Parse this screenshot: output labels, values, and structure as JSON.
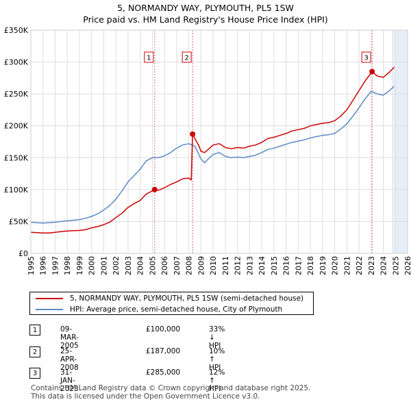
{
  "chart_data": {
    "type": "line",
    "title": "5, NORMANDY WAY, PLYMOUTH, PL5 1SW",
    "subtitle": "Price paid vs. HM Land Registry's House Price Index (HPI)",
    "xlim": [
      1995,
      2026
    ],
    "ylim": [
      0,
      350000
    ],
    "x_ticks": [
      "1995",
      "1996",
      "1997",
      "1998",
      "1999",
      "2000",
      "2001",
      "2002",
      "2003",
      "2004",
      "2005",
      "2006",
      "2007",
      "2008",
      "2009",
      "2010",
      "2011",
      "2012",
      "2013",
      "2014",
      "2015",
      "2016",
      "2017",
      "2018",
      "2019",
      "2020",
      "2021",
      "2022",
      "2023",
      "2024",
      "2025",
      "2026"
    ],
    "y_ticks": [
      {
        "value": 0,
        "label": "£0"
      },
      {
        "value": 50000,
        "label": "£50K"
      },
      {
        "value": 100000,
        "label": "£100K"
      },
      {
        "value": 150000,
        "label": "£150K"
      },
      {
        "value": 200000,
        "label": "£200K"
      },
      {
        "value": 250000,
        "label": "£250K"
      },
      {
        "value": 300000,
        "label": "£300K"
      },
      {
        "value": 350000,
        "label": "£350K"
      }
    ],
    "grid": true,
    "forecast_start": 2024.7,
    "series": [
      {
        "name": "5, NORMANDY WAY, PLYMOUTH, PL5 1SW (semi-detached house)",
        "color": "#cc0000",
        "points": [
          [
            1995.0,
            33000
          ],
          [
            1995.5,
            32500
          ],
          [
            1996.0,
            32000
          ],
          [
            1996.5,
            32000
          ],
          [
            1997.0,
            33000
          ],
          [
            1997.5,
            34000
          ],
          [
            1998.0,
            35000
          ],
          [
            1998.5,
            35500
          ],
          [
            1999.0,
            36000
          ],
          [
            1999.5,
            37000
          ],
          [
            2000.0,
            40000
          ],
          [
            2000.5,
            42000
          ],
          [
            2001.0,
            45000
          ],
          [
            2001.5,
            49000
          ],
          [
            2002.0,
            56000
          ],
          [
            2002.5,
            63000
          ],
          [
            2003.0,
            72000
          ],
          [
            2003.5,
            78000
          ],
          [
            2004.0,
            83000
          ],
          [
            2004.5,
            93000
          ],
          [
            2005.0,
            98000
          ],
          [
            2005.19,
            100000
          ],
          [
            2005.5,
            99000
          ],
          [
            2006.0,
            103000
          ],
          [
            2006.5,
            108000
          ],
          [
            2007.0,
            112000
          ],
          [
            2007.5,
            117000
          ],
          [
            2008.0,
            118000
          ],
          [
            2008.2,
            115000
          ],
          [
            2008.31,
            187000
          ],
          [
            2008.5,
            180000
          ],
          [
            2008.8,
            170000
          ],
          [
            2009.0,
            160000
          ],
          [
            2009.3,
            158000
          ],
          [
            2009.6,
            163000
          ],
          [
            2010.0,
            170000
          ],
          [
            2010.5,
            172000
          ],
          [
            2011.0,
            166000
          ],
          [
            2011.5,
            164000
          ],
          [
            2012.0,
            166000
          ],
          [
            2012.5,
            165000
          ],
          [
            2013.0,
            168000
          ],
          [
            2013.5,
            170000
          ],
          [
            2014.0,
            174000
          ],
          [
            2014.5,
            180000
          ],
          [
            2015.0,
            182000
          ],
          [
            2015.5,
            185000
          ],
          [
            2016.0,
            188000
          ],
          [
            2016.5,
            192000
          ],
          [
            2017.0,
            194000
          ],
          [
            2017.5,
            196000
          ],
          [
            2018.0,
            200000
          ],
          [
            2018.5,
            202000
          ],
          [
            2019.0,
            204000
          ],
          [
            2019.5,
            205000
          ],
          [
            2020.0,
            208000
          ],
          [
            2020.5,
            215000
          ],
          [
            2021.0,
            225000
          ],
          [
            2021.5,
            240000
          ],
          [
            2022.0,
            255000
          ],
          [
            2022.5,
            270000
          ],
          [
            2023.08,
            285000
          ],
          [
            2023.5,
            278000
          ],
          [
            2024.0,
            276000
          ],
          [
            2024.5,
            284000
          ],
          [
            2024.9,
            292000
          ]
        ]
      },
      {
        "name": "HPI: Average price, semi-detached house, City of Plymouth",
        "color": "#5a8ac6",
        "points": [
          [
            1995.0,
            49000
          ],
          [
            1995.5,
            48000
          ],
          [
            1996.0,
            47500
          ],
          [
            1996.5,
            48000
          ],
          [
            1997.0,
            49000
          ],
          [
            1997.5,
            50000
          ],
          [
            1998.0,
            51000
          ],
          [
            1998.5,
            52000
          ],
          [
            1999.0,
            53000
          ],
          [
            1999.5,
            55000
          ],
          [
            2000.0,
            58000
          ],
          [
            2000.5,
            62000
          ],
          [
            2001.0,
            68000
          ],
          [
            2001.5,
            75000
          ],
          [
            2002.0,
            85000
          ],
          [
            2002.5,
            98000
          ],
          [
            2003.0,
            112000
          ],
          [
            2003.5,
            122000
          ],
          [
            2004.0,
            132000
          ],
          [
            2004.5,
            145000
          ],
          [
            2005.0,
            150000
          ],
          [
            2005.5,
            150000
          ],
          [
            2006.0,
            153000
          ],
          [
            2006.5,
            158000
          ],
          [
            2007.0,
            165000
          ],
          [
            2007.5,
            170000
          ],
          [
            2008.0,
            172000
          ],
          [
            2008.5,
            168000
          ],
          [
            2009.0,
            148000
          ],
          [
            2009.3,
            142000
          ],
          [
            2009.6,
            148000
          ],
          [
            2010.0,
            155000
          ],
          [
            2010.5,
            158000
          ],
          [
            2011.0,
            152000
          ],
          [
            2011.5,
            150000
          ],
          [
            2012.0,
            151000
          ],
          [
            2012.5,
            150000
          ],
          [
            2013.0,
            152000
          ],
          [
            2013.5,
            154000
          ],
          [
            2014.0,
            158000
          ],
          [
            2014.5,
            163000
          ],
          [
            2015.0,
            165000
          ],
          [
            2015.5,
            168000
          ],
          [
            2016.0,
            171000
          ],
          [
            2016.5,
            174000
          ],
          [
            2017.0,
            176000
          ],
          [
            2017.5,
            178000
          ],
          [
            2018.0,
            181000
          ],
          [
            2018.5,
            183000
          ],
          [
            2019.0,
            185000
          ],
          [
            2019.5,
            186000
          ],
          [
            2020.0,
            188000
          ],
          [
            2020.5,
            195000
          ],
          [
            2021.0,
            203000
          ],
          [
            2021.5,
            215000
          ],
          [
            2022.0,
            228000
          ],
          [
            2022.5,
            242000
          ],
          [
            2023.0,
            254000
          ],
          [
            2023.5,
            250000
          ],
          [
            2024.0,
            248000
          ],
          [
            2024.5,
            255000
          ],
          [
            2024.9,
            262000
          ]
        ]
      }
    ],
    "annotations": [
      {
        "label": "1",
        "x": 2005.19,
        "y": 100000
      },
      {
        "label": "2",
        "x": 2008.31,
        "y": 187000
      },
      {
        "label": "3",
        "x": 2023.08,
        "y": 285000
      }
    ]
  },
  "colors": {
    "price_line": "#cc0000",
    "hpi_line": "#5a8ac6",
    "grid": "#dddddd",
    "forecast_shade": "#e8eef8",
    "event_line": "#e06060"
  },
  "legend": {
    "price_label": "5, NORMANDY WAY, PLYMOUTH, PL5 1SW (semi-detached house)",
    "hpi_label": "HPI: Average price, semi-detached house, City of Plymouth"
  },
  "transactions": [
    {
      "num": "1",
      "date": "09-MAR-2005",
      "price": "£100,000",
      "hpi": "33% ↓ HPI"
    },
    {
      "num": "2",
      "date": "25-APR-2008",
      "price": "£187,000",
      "hpi": "10% ↑ HPI"
    },
    {
      "num": "3",
      "date": "31-JAN-2023",
      "price": "£285,000",
      "hpi": "12% ↑ HPI"
    }
  ],
  "footer": {
    "line1": "Contains HM Land Registry data © Crown copyright and database right 2025.",
    "line2": "This data is licensed under the Open Government Licence v3.0."
  }
}
